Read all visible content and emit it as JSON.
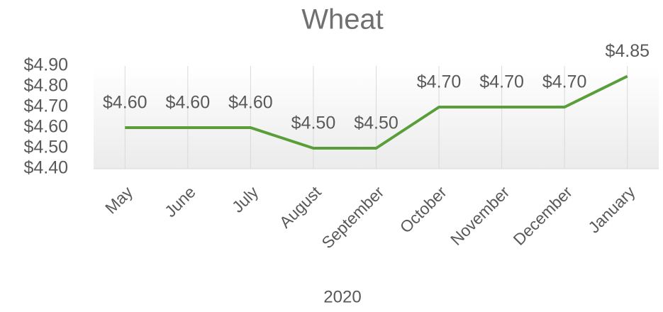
{
  "chart_data": {
    "type": "line",
    "title": "Wheat",
    "x_label": "2020",
    "categories": [
      "May",
      "June",
      "July",
      "August",
      "September",
      "October",
      "November",
      "December",
      "January"
    ],
    "values": [
      4.6,
      4.6,
      4.6,
      4.5,
      4.5,
      4.7,
      4.7,
      4.7,
      4.85
    ],
    "value_labels": [
      "$4.60",
      "$4.60",
      "$4.60",
      "$4.50",
      "$4.50",
      "$4.70",
      "$4.70",
      "$4.70",
      "$4.85"
    ],
    "color": "#5a9e3a",
    "ylim": [
      4.4,
      4.9
    ],
    "yticks": [
      {
        "value": 4.4,
        "label": "$4.40"
      },
      {
        "value": 4.5,
        "label": "$4.50"
      },
      {
        "value": 4.6,
        "label": "$4.60"
      },
      {
        "value": 4.7,
        "label": "$4.70"
      },
      {
        "value": 4.8,
        "label": "$4.80"
      },
      {
        "value": 4.9,
        "label": "$4.90"
      }
    ],
    "grid": true
  }
}
